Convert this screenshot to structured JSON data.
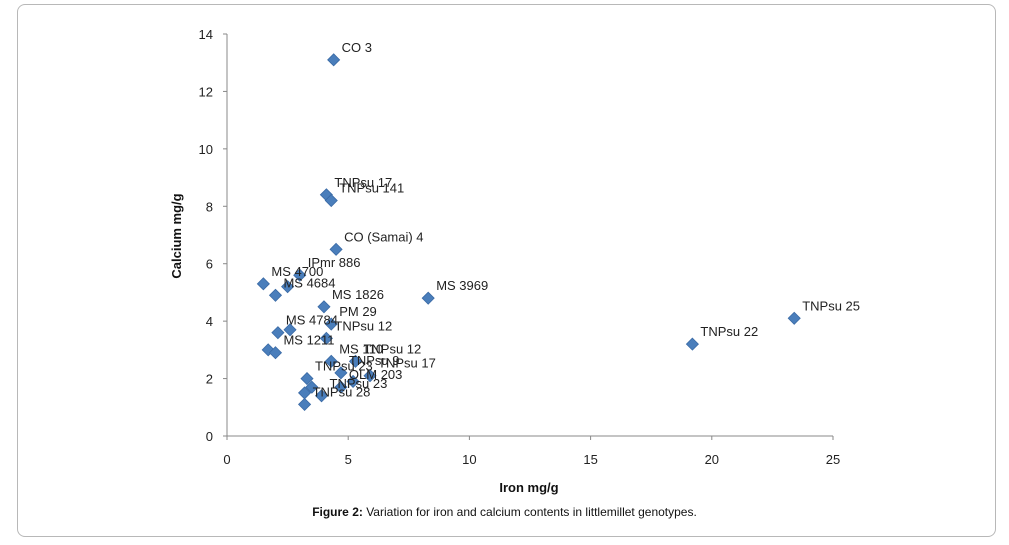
{
  "caption": {
    "prefix": "Figure 2:",
    "text": " Variation for iron and calcium contents in littlemillet genotypes."
  },
  "chart_data": {
    "type": "scatter",
    "title": "",
    "xlabel": "Iron mg/g",
    "ylabel": "Calcium mg/g",
    "xlim": [
      0,
      25
    ],
    "ylim": [
      0,
      14
    ],
    "xticks": [
      0,
      5,
      10,
      15,
      20,
      25
    ],
    "yticks": [
      0,
      2,
      4,
      6,
      8,
      10,
      12,
      14
    ],
    "grid": false,
    "legend": "none",
    "marker_color": "#4a7ebb",
    "points": [
      {
        "x": 4.4,
        "y": 13.1,
        "label": "CO 3"
      },
      {
        "x": 4.1,
        "y": 8.4,
        "label": "TNPsu 17"
      },
      {
        "x": 4.3,
        "y": 8.2,
        "label": "TNPsu 141"
      },
      {
        "x": 4.5,
        "y": 6.5,
        "label": "CO (Samai) 4"
      },
      {
        "x": 3.0,
        "y": 5.6,
        "label": "IPmr 886"
      },
      {
        "x": 1.5,
        "y": 5.3,
        "label": "MS 4700"
      },
      {
        "x": 2.5,
        "y": 5.2,
        "label": ""
      },
      {
        "x": 8.3,
        "y": 4.8,
        "label": "MS 3969"
      },
      {
        "x": 2.0,
        "y": 4.9,
        "label": "MS 4684"
      },
      {
        "x": 4.0,
        "y": 4.5,
        "label": "MS 1826"
      },
      {
        "x": 4.3,
        "y": 3.9,
        "label": "PM 29"
      },
      {
        "x": 2.6,
        "y": 3.7,
        "label": ""
      },
      {
        "x": 2.1,
        "y": 3.6,
        "label": "MS 4784"
      },
      {
        "x": 4.1,
        "y": 3.4,
        "label": "TNPsu 12"
      },
      {
        "x": 1.7,
        "y": 3.0,
        "label": ""
      },
      {
        "x": 2.0,
        "y": 2.9,
        "label": "MS 1211"
      },
      {
        "x": 4.3,
        "y": 2.6,
        "label": "MS 110"
      },
      {
        "x": 5.3,
        "y": 2.6,
        "label": "TNPsu 12"
      },
      {
        "x": 4.7,
        "y": 2.2,
        "label": "TNPsu 9"
      },
      {
        "x": 5.9,
        "y": 2.1,
        "label": "TNPsu 17"
      },
      {
        "x": 3.3,
        "y": 2.0,
        "label": "TNPsu 23"
      },
      {
        "x": 5.2,
        "y": 1.9,
        "label": ""
      },
      {
        "x": 3.5,
        "y": 1.7,
        "label": ""
      },
      {
        "x": 4.7,
        "y": 1.7,
        "label": "OLM 203"
      },
      {
        "x": 3.2,
        "y": 1.5,
        "label": ""
      },
      {
        "x": 3.9,
        "y": 1.4,
        "label": "TNPsu 23"
      },
      {
        "x": 3.2,
        "y": 1.1,
        "label": "TNPsu 28"
      },
      {
        "x": 19.2,
        "y": 3.2,
        "label": "TNPsu 22"
      },
      {
        "x": 23.4,
        "y": 4.1,
        "label": "TNPsu 25"
      }
    ]
  }
}
